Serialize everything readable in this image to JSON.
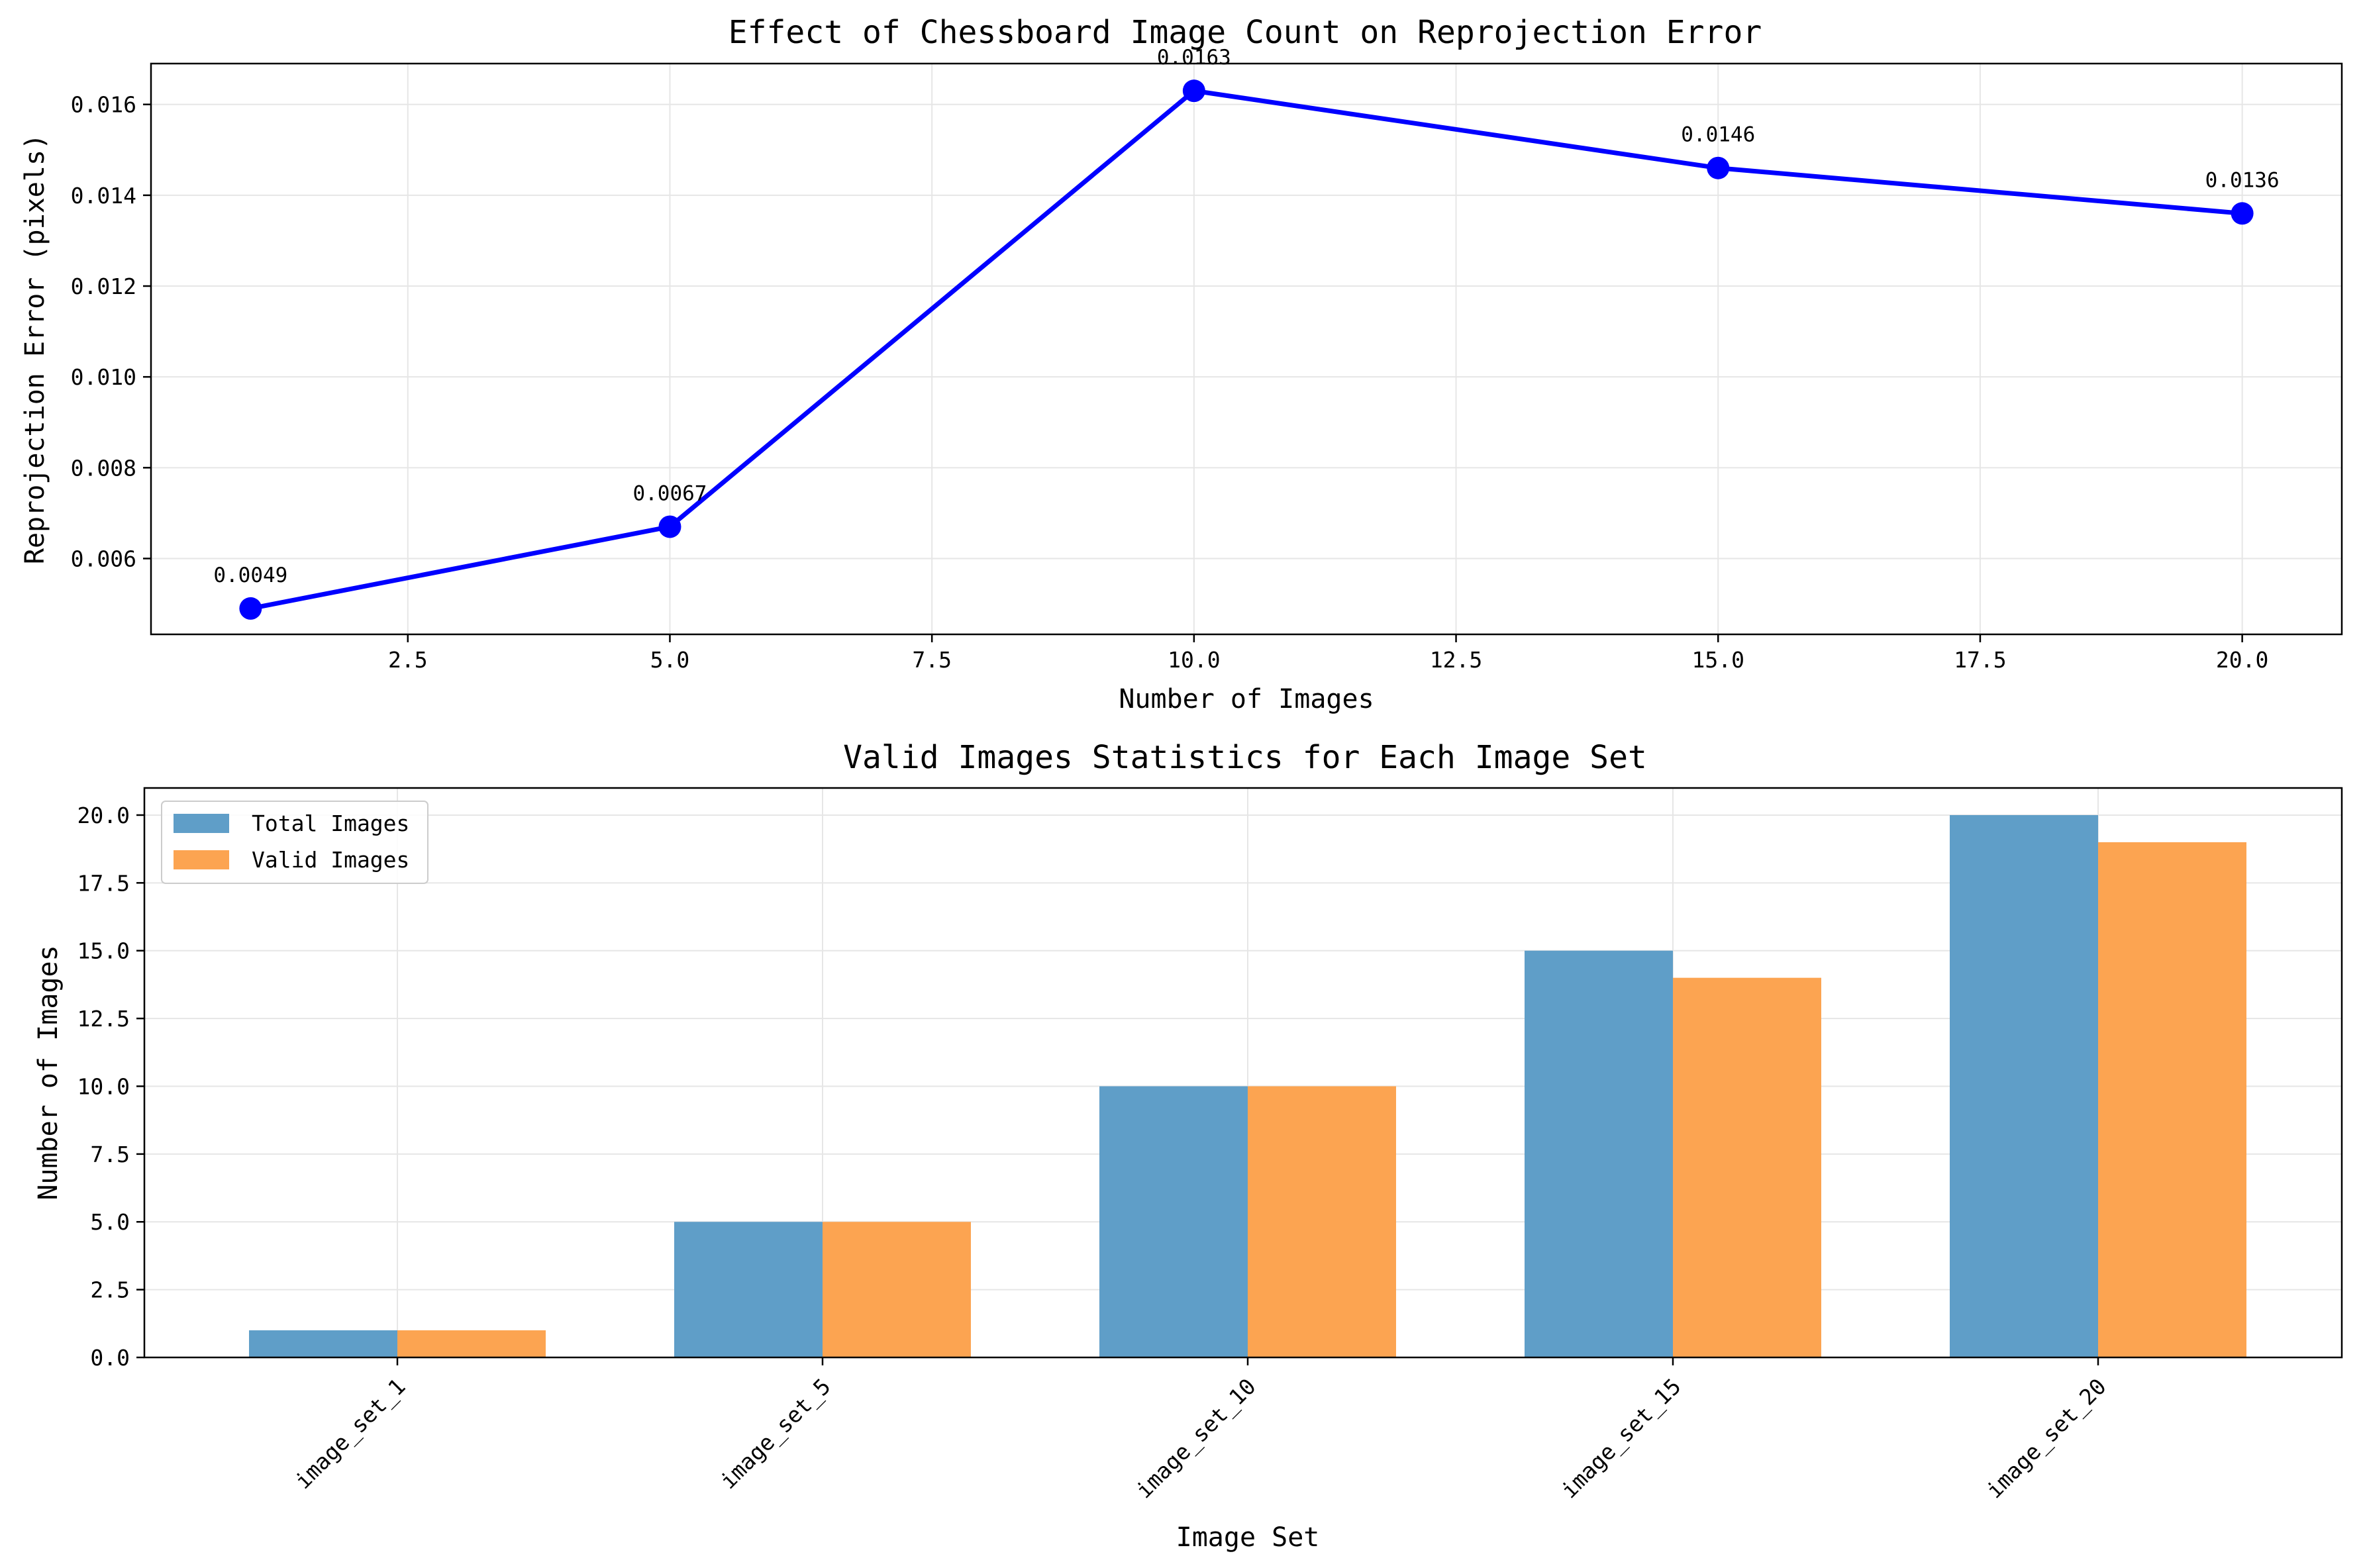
{
  "colors": {
    "line": "#0000ff",
    "total_bar": "#5f9ec8",
    "valid_bar": "#fca451"
  },
  "chart_data": [
    {
      "type": "line",
      "title": "Effect of Chessboard Image Count on Reprojection Error",
      "xlabel": "Number of Images",
      "ylabel": "Reprojection Error (pixels)",
      "x": [
        1,
        5,
        10,
        15,
        20
      ],
      "y": [
        0.0049,
        0.0067,
        0.0163,
        0.0146,
        0.0136
      ],
      "data_labels": [
        "0.0049",
        "0.0067",
        "0.0163",
        "0.0146",
        "0.0136"
      ],
      "xlim": [
        0.05,
        20.95
      ],
      "ylim": [
        0.00433,
        0.0169
      ],
      "xticks": [
        2.5,
        5.0,
        7.5,
        10.0,
        12.5,
        15.0,
        17.5,
        20.0
      ],
      "xtick_labels": [
        "2.5",
        "5.0",
        "7.5",
        "10.0",
        "12.5",
        "15.0",
        "17.5",
        "20.0"
      ],
      "yticks": [
        0.006,
        0.008,
        0.01,
        0.012,
        0.014,
        0.016
      ],
      "ytick_labels": [
        "0.006",
        "0.008",
        "0.010",
        "0.012",
        "0.014",
        "0.016"
      ],
      "grid": true
    },
    {
      "type": "bar",
      "title": "Valid Images Statistics for Each Image Set",
      "xlabel": "Image Set",
      "ylabel": "Number of Images",
      "categories": [
        "image_set_1",
        "image_set_5",
        "image_set_10",
        "image_set_15",
        "image_set_20"
      ],
      "series": [
        {
          "name": "Total Images",
          "values": [
            1,
            5,
            10,
            15,
            20
          ]
        },
        {
          "name": "Valid Images",
          "values": [
            1,
            5,
            10,
            14,
            19
          ]
        }
      ],
      "ylim": [
        0,
        21
      ],
      "yticks": [
        0,
        2.5,
        5,
        7.5,
        10,
        12.5,
        15,
        17.5,
        20
      ],
      "ytick_labels": [
        "0.0",
        "2.5",
        "5.0",
        "7.5",
        "10.0",
        "12.5",
        "15.0",
        "17.5",
        "20.0"
      ],
      "legend_position": "upper-left",
      "grid": true
    }
  ]
}
